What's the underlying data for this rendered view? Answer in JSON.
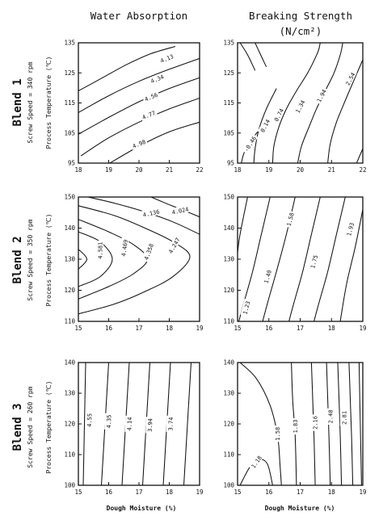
{
  "figure": {
    "col_titles": [
      "Water Absorption",
      "Breaking Strength",
      "(N/cm²)"
    ],
    "row_labels": [
      "Blend 1",
      "Blend 2",
      "Blend 3"
    ],
    "row_sublabels": [
      "Screw Speed = 340 rpm",
      "Screw Speed = 350 rpm",
      "Screw Speed = 260 rpm"
    ],
    "y_axis_label": "Process Temperature (℃)",
    "x_axis_label": "Dough Moisture (%)"
  },
  "chart_data": [
    {
      "type": "contour",
      "row": "Blend 1",
      "column": "Water Absorption",
      "xlim": [
        18,
        22
      ],
      "ylim": [
        95,
        135
      ],
      "xticks": [
        "18",
        "19",
        "20",
        "21",
        "22"
      ],
      "yticks": [
        "95",
        "105",
        "115",
        "125",
        "135"
      ],
      "levels": [
        "4.13",
        "4.34",
        "4.56",
        "4.77",
        "4.98"
      ]
    },
    {
      "type": "contour",
      "row": "Blend 1",
      "column": "Breaking Strength",
      "xlim": [
        18,
        22
      ],
      "ylim": [
        95,
        135
      ],
      "xticks": [
        "18",
        "19",
        "20",
        "21",
        "22"
      ],
      "yticks": [
        "95",
        "105",
        "115",
        "125",
        "135"
      ],
      "levels": [
        "-0.46",
        "0.14",
        "0.74",
        "1.34",
        "1.94",
        "2.54"
      ]
    },
    {
      "type": "contour",
      "row": "Blend 2",
      "column": "Water Absorption",
      "xlim": [
        15,
        19
      ],
      "ylim": [
        110,
        150
      ],
      "xticks": [
        "15",
        "16",
        "17",
        "18",
        "19"
      ],
      "yticks": [
        "110",
        "120",
        "130",
        "140",
        "150"
      ],
      "levels": [
        "4.024",
        "4.136",
        "4.247",
        "4.358",
        "4.469",
        "4.581"
      ]
    },
    {
      "type": "contour",
      "row": "Blend 2",
      "column": "Breaking Strength",
      "xlim": [
        15,
        19
      ],
      "ylim": [
        110,
        150
      ],
      "xticks": [
        "15",
        "16",
        "17",
        "18",
        "19"
      ],
      "yticks": [
        "110",
        "120",
        "130",
        "140",
        "150"
      ],
      "levels": [
        "1.23",
        "1.40",
        "1.58",
        "1.75",
        "1.93"
      ]
    },
    {
      "type": "contour",
      "row": "Blend 3",
      "column": "Water Absorption",
      "xlim": [
        15,
        19
      ],
      "ylim": [
        100,
        140
      ],
      "xticks": [
        "15",
        "16",
        "17",
        "18",
        "19"
      ],
      "yticks": [
        "100",
        "110",
        "120",
        "130",
        "140"
      ],
      "levels": [
        "4.55",
        "4.35",
        "4.14",
        "3.94",
        "3.74"
      ]
    },
    {
      "type": "contour",
      "row": "Blend 3",
      "column": "Breaking Strength",
      "xlim": [
        15,
        19
      ],
      "ylim": [
        100,
        140
      ],
      "xticks": [
        "15",
        "16",
        "17",
        "18",
        "19"
      ],
      "yticks": [
        "100",
        "110",
        "120",
        "130",
        "140"
      ],
      "levels": [
        "1.18",
        "1.58",
        "1.83",
        "2.16",
        "2.48",
        "2.81"
      ]
    }
  ]
}
